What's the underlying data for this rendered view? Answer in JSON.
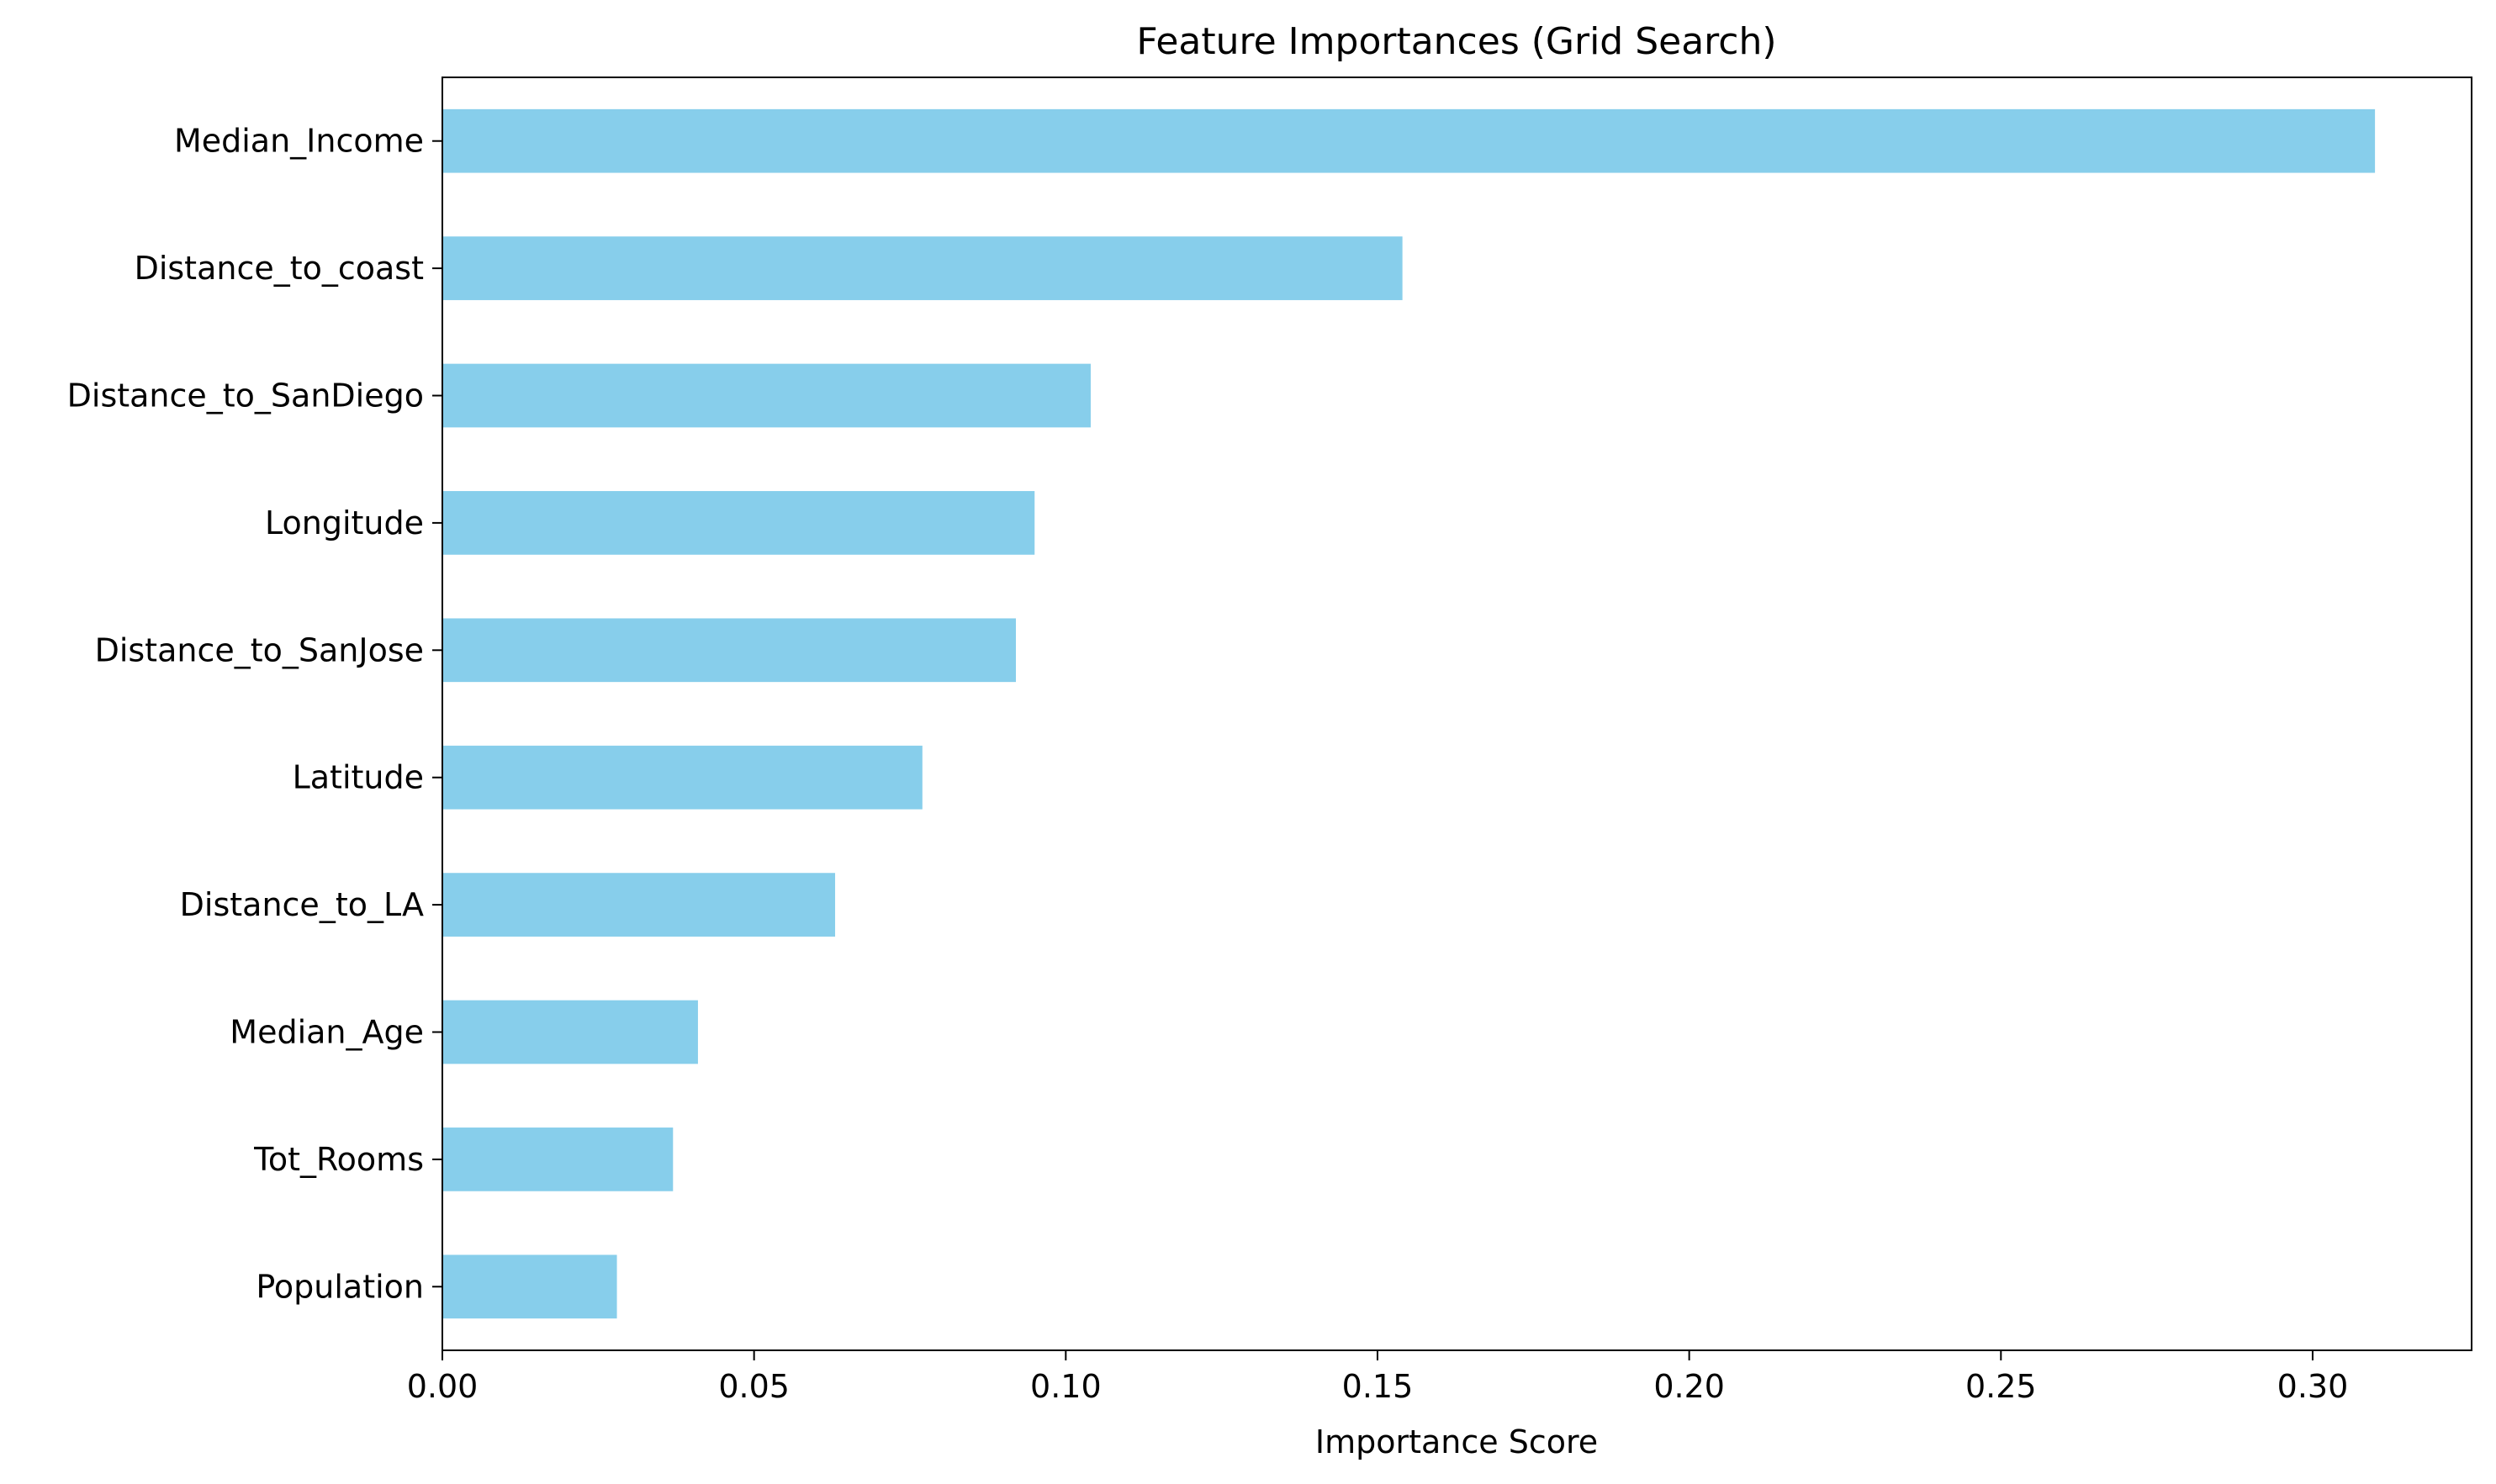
{
  "chart_data": {
    "type": "bar",
    "orientation": "horizontal",
    "title": "Feature Importances (Grid Search)",
    "xlabel": "Importance Score",
    "ylabel": "",
    "categories": [
      "Median_Income",
      "Distance_to_coast",
      "Distance_to_SanDiego",
      "Longitude",
      "Distance_to_SanJose",
      "Latitude",
      "Distance_to_LA",
      "Median_Age",
      "Tot_Rooms",
      "Population"
    ],
    "values": [
      0.31,
      0.154,
      0.104,
      0.095,
      0.092,
      0.077,
      0.063,
      0.041,
      0.037,
      0.028
    ],
    "xlim": [
      0,
      0.3255
    ],
    "xticks": [
      0.0,
      0.05,
      0.1,
      0.15,
      0.2,
      0.25,
      0.3
    ],
    "xtick_labels": [
      "0.00",
      "0.05",
      "0.10",
      "0.15",
      "0.20",
      "0.25",
      "0.30"
    ],
    "grid": false,
    "legend": false,
    "bar_color": "#87ceeb"
  }
}
